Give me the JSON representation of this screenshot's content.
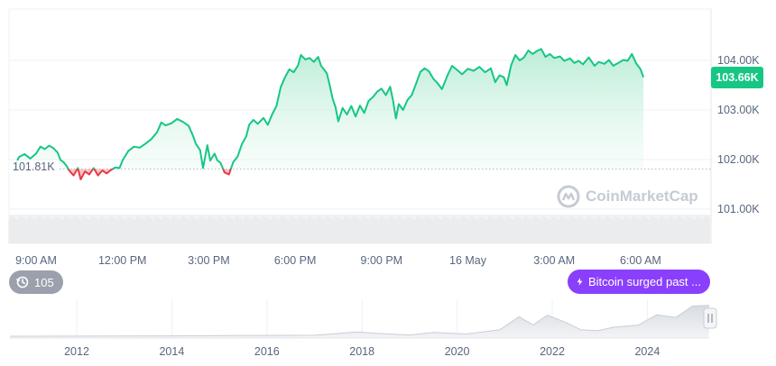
{
  "chart_data": [
    {
      "type": "area",
      "title": "",
      "xlabel": "",
      "ylabel": "",
      "x_ticks": [
        "9:00 AM",
        "12:00 PM",
        "3:00 PM",
        "6:00 PM",
        "9:00 PM",
        "16 May",
        "3:00 AM",
        "6:00 AM"
      ],
      "y_ticks": [
        "104.00K",
        "103.00K",
        "102.00K",
        "101.00K"
      ],
      "y_tick_values": [
        104000,
        103000,
        102000,
        101000
      ],
      "ylim": [
        100700,
        105100
      ],
      "x_unit": "hours since 9:00 AM",
      "reference_line": {
        "value": 101810,
        "label": "101.81K"
      },
      "current_price": {
        "value": 103660,
        "label": "103.66K"
      },
      "colors": {
        "above": "#16c784",
        "below": "#ea3943",
        "fill_top": "#b8ecd5",
        "grid": "#eef0f3"
      },
      "grid": true,
      "series": [
        {
          "name": "",
          "points": [
            [
              -0.75,
              101830
            ],
            [
              -0.6,
              102050
            ],
            [
              -0.4,
              102110
            ],
            [
              -0.2,
              102020
            ],
            [
              0.0,
              102120
            ],
            [
              0.15,
              102260
            ],
            [
              0.3,
              102210
            ],
            [
              0.45,
              102280
            ],
            [
              0.6,
              102230
            ],
            [
              0.75,
              102140
            ],
            [
              0.85,
              101990
            ],
            [
              0.95,
              101950
            ],
            [
              1.05,
              101880
            ],
            [
              1.15,
              101780
            ],
            [
              1.3,
              101680
            ],
            [
              1.45,
              101830
            ],
            [
              1.55,
              101600
            ],
            [
              1.7,
              101760
            ],
            [
              1.85,
              101700
            ],
            [
              2.0,
              101830
            ],
            [
              2.15,
              101680
            ],
            [
              2.3,
              101780
            ],
            [
              2.45,
              101720
            ],
            [
              2.6,
              101790
            ],
            [
              2.75,
              101840
            ],
            [
              2.9,
              101830
            ],
            [
              3.0,
              101980
            ],
            [
              3.2,
              102170
            ],
            [
              3.4,
              102260
            ],
            [
              3.6,
              102240
            ],
            [
              3.8,
              102320
            ],
            [
              4.0,
              102410
            ],
            [
              4.2,
              102550
            ],
            [
              4.35,
              102750
            ],
            [
              4.5,
              102690
            ],
            [
              4.7,
              102730
            ],
            [
              4.9,
              102820
            ],
            [
              5.1,
              102760
            ],
            [
              5.3,
              102680
            ],
            [
              5.45,
              102480
            ],
            [
              5.55,
              102320
            ],
            [
              5.7,
              102190
            ],
            [
              5.8,
              101830
            ],
            [
              5.95,
              102290
            ],
            [
              6.05,
              101980
            ],
            [
              6.2,
              102120
            ],
            [
              6.3,
              101980
            ],
            [
              6.4,
              101940
            ],
            [
              6.55,
              101740
            ],
            [
              6.7,
              101700
            ],
            [
              6.85,
              101950
            ],
            [
              7.0,
              102060
            ],
            [
              7.15,
              102310
            ],
            [
              7.3,
              102470
            ],
            [
              7.4,
              102700
            ],
            [
              7.55,
              102800
            ],
            [
              7.7,
              102720
            ],
            [
              7.9,
              102840
            ],
            [
              8.05,
              102700
            ],
            [
              8.2,
              102910
            ],
            [
              8.35,
              103080
            ],
            [
              8.5,
              103460
            ],
            [
              8.65,
              103660
            ],
            [
              8.8,
              103820
            ],
            [
              8.95,
              103760
            ],
            [
              9.1,
              103900
            ],
            [
              9.2,
              104110
            ],
            [
              9.35,
              104020
            ],
            [
              9.5,
              104050
            ],
            [
              9.65,
              103970
            ],
            [
              9.8,
              104070
            ],
            [
              9.9,
              103890
            ],
            [
              10.0,
              103820
            ],
            [
              10.1,
              103740
            ],
            [
              10.2,
              103500
            ],
            [
              10.3,
              103230
            ],
            [
              10.4,
              103060
            ],
            [
              10.5,
              102770
            ],
            [
              10.65,
              103040
            ],
            [
              10.8,
              102910
            ],
            [
              10.95,
              103080
            ],
            [
              11.1,
              102870
            ],
            [
              11.25,
              103090
            ],
            [
              11.4,
              102940
            ],
            [
              11.55,
              103180
            ],
            [
              11.7,
              103260
            ],
            [
              11.85,
              103370
            ],
            [
              12.0,
              103430
            ],
            [
              12.15,
              103300
            ],
            [
              12.3,
              103470
            ],
            [
              12.4,
              103190
            ],
            [
              12.5,
              102830
            ],
            [
              12.6,
              103120
            ],
            [
              12.75,
              103000
            ],
            [
              12.9,
              103200
            ],
            [
              13.05,
              103300
            ],
            [
              13.2,
              103530
            ],
            [
              13.35,
              103770
            ],
            [
              13.5,
              103840
            ],
            [
              13.65,
              103780
            ],
            [
              13.8,
              103630
            ],
            [
              13.95,
              103540
            ],
            [
              14.1,
              103420
            ],
            [
              14.3,
              103710
            ],
            [
              14.45,
              103890
            ],
            [
              14.6,
              103820
            ],
            [
              14.8,
              103720
            ],
            [
              15.0,
              103830
            ],
            [
              15.2,
              103790
            ],
            [
              15.4,
              103870
            ],
            [
              15.6,
              103760
            ],
            [
              15.8,
              103840
            ],
            [
              15.95,
              103560
            ],
            [
              16.1,
              103700
            ],
            [
              16.25,
              103660
            ],
            [
              16.35,
              103500
            ],
            [
              16.5,
              103900
            ],
            [
              16.65,
              104110
            ],
            [
              16.8,
              104000
            ],
            [
              16.95,
              104060
            ],
            [
              17.1,
              104200
            ],
            [
              17.25,
              104130
            ],
            [
              17.4,
              104190
            ],
            [
              17.55,
              104230
            ],
            [
              17.7,
              104070
            ],
            [
              17.85,
              104130
            ],
            [
              18.0,
              104050
            ],
            [
              18.2,
              104080
            ],
            [
              18.35,
              103990
            ],
            [
              18.55,
              104040
            ],
            [
              18.7,
              103950
            ],
            [
              18.85,
              103990
            ],
            [
              19.0,
              103920
            ],
            [
              19.2,
              104060
            ],
            [
              19.4,
              103890
            ],
            [
              19.55,
              103970
            ],
            [
              19.75,
              103930
            ],
            [
              19.9,
              104010
            ],
            [
              20.05,
              103890
            ],
            [
              20.2,
              103940
            ],
            [
              20.4,
              104010
            ],
            [
              20.55,
              103990
            ],
            [
              20.7,
              104130
            ],
            [
              20.85,
              103940
            ],
            [
              21.0,
              103820
            ],
            [
              21.1,
              103660
            ]
          ]
        }
      ]
    },
    {
      "type": "area",
      "title": "",
      "xlabel": "",
      "ylabel": "",
      "x_ticks": [
        "2012",
        "2014",
        "2016",
        "2018",
        "2020",
        "2022",
        "2024"
      ],
      "series": [
        {
          "name": "",
          "points": [
            [
              2010.6,
              0.0
            ],
            [
              2013.9,
              0.01
            ],
            [
              2017.0,
              0.03
            ],
            [
              2017.9,
              0.13
            ],
            [
              2018.3,
              0.09
            ],
            [
              2019.0,
              0.04
            ],
            [
              2019.5,
              0.12
            ],
            [
              2020.2,
              0.07
            ],
            [
              2020.9,
              0.2
            ],
            [
              2021.3,
              0.6
            ],
            [
              2021.6,
              0.35
            ],
            [
              2021.9,
              0.65
            ],
            [
              2022.3,
              0.42
            ],
            [
              2022.6,
              0.2
            ],
            [
              2022.95,
              0.17
            ],
            [
              2023.3,
              0.28
            ],
            [
              2023.8,
              0.34
            ],
            [
              2024.2,
              0.66
            ],
            [
              2024.6,
              0.58
            ],
            [
              2024.95,
              0.93
            ],
            [
              2025.3,
              0.95
            ]
          ]
        }
      ]
    }
  ],
  "ui": {
    "events_count": "105",
    "news_text": "Bitcoin surged past ...",
    "watermark": "CoinMarketCap",
    "icons": {
      "events": "history-icon",
      "news": "lightning-bolt-icon",
      "handle": "drag-handle-icon",
      "logo": "coinmarketcap-logo-icon"
    }
  }
}
